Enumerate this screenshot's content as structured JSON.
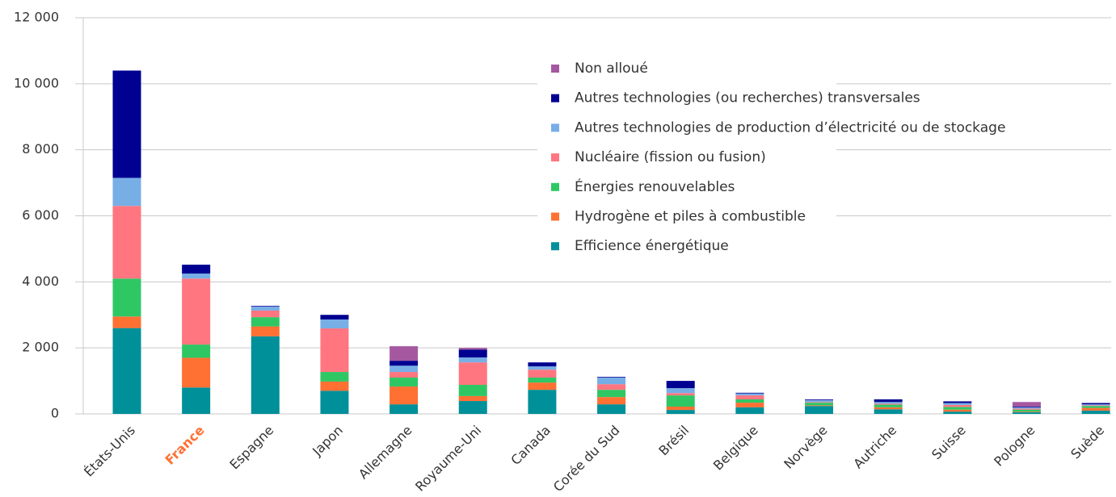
{
  "chart_data": {
    "type": "bar",
    "stacked": true,
    "categories": [
      "États-Unis",
      "France",
      "Espagne",
      "Japon",
      "Allemagne",
      "Royaume-Uni",
      "Canada",
      "Corée du Sud",
      "Brésil",
      "Belgique",
      "Norvège",
      "Autriche",
      "Suisse",
      "Pologne",
      "Suède"
    ],
    "category_label_colors": [
      "#333333",
      "#ff7033",
      "#333333",
      "#333333",
      "#333333",
      "#333333",
      "#333333",
      "#333333",
      "#333333",
      "#333333",
      "#333333",
      "#333333",
      "#333333",
      "#333333",
      "#333333"
    ],
    "series": [
      {
        "name": "Efficience énergétique",
        "color": "#009099",
        "values": [
          2600,
          800,
          2350,
          700,
          290,
          390,
          730,
          290,
          120,
          200,
          240,
          140,
          70,
          50,
          100
        ]
      },
      {
        "name": "Hydrogène et piles à combustible",
        "color": "#ff7033",
        "values": [
          350,
          900,
          300,
          280,
          540,
          150,
          220,
          220,
          100,
          140,
          20,
          60,
          60,
          20,
          80
        ]
      },
      {
        "name": "Énergies renouvelables",
        "color": "#2fc764",
        "values": [
          1150,
          400,
          280,
          290,
          270,
          340,
          150,
          220,
          340,
          100,
          80,
          80,
          80,
          60,
          60
        ]
      },
      {
        "name": "Nucléaire (fission ou fusion)",
        "color": "#ff7680",
        "values": [
          2200,
          2000,
          200,
          1320,
          170,
          680,
          240,
          170,
          70,
          120,
          20,
          30,
          60,
          30,
          20
        ]
      },
      {
        "name": "Autres technologies de production d’électricité ou de stockage",
        "color": "#78aee6",
        "values": [
          850,
          150,
          120,
          270,
          190,
          150,
          100,
          200,
          150,
          60,
          60,
          50,
          60,
          40,
          30
        ]
      },
      {
        "name": "Autres technologies (ou recherches) transversales",
        "color": "#000091",
        "values": [
          3250,
          270,
          20,
          140,
          150,
          240,
          120,
          20,
          220,
          20,
          20,
          80,
          50,
          20,
          40
        ]
      },
      {
        "name": "Non alloué",
        "color": "#a558a0",
        "values": [
          0,
          0,
          0,
          0,
          440,
          50,
          0,
          0,
          0,
          0,
          0,
          0,
          0,
          140,
          0
        ]
      }
    ],
    "ylim": [
      0,
      12000
    ],
    "yticks": [
      0,
      {
        "value": 2000,
        "label": "2 000"
      },
      {
        "value": 4000,
        "label": "4 000"
      },
      {
        "value": 6000,
        "label": "6 000"
      },
      {
        "value": 8000,
        "label": "8 000"
      },
      {
        "value": 10000,
        "label": "10 000"
      },
      {
        "value": 12000,
        "label": "12 000"
      }
    ],
    "grid": true,
    "legend": "top-center",
    "legend_order": "reversed"
  }
}
